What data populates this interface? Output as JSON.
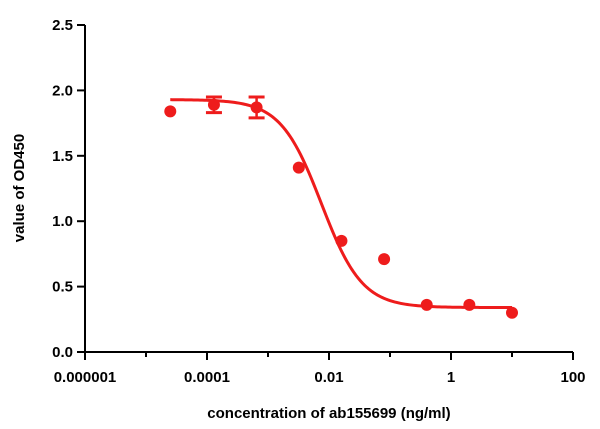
{
  "chart_data": {
    "type": "scatter",
    "xlabel": "concentration of ab155699 (ng/ml)",
    "ylabel": "value of OD450",
    "x_scale": "log",
    "xlim": [
      1e-06,
      100
    ],
    "ylim": [
      0,
      2.5
    ],
    "x_ticks": [
      {
        "value": 1e-06,
        "label": "0.000001"
      },
      {
        "value": 0.0001,
        "label": "0.0001"
      },
      {
        "value": 0.01,
        "label": "0.01"
      },
      {
        "value": 1,
        "label": "1"
      },
      {
        "value": 100,
        "label": "100"
      }
    ],
    "y_ticks": [
      {
        "value": 0,
        "label": "0.0"
      },
      {
        "value": 0.5,
        "label": "0.5"
      },
      {
        "value": 1.0,
        "label": "1.0"
      },
      {
        "value": 1.5,
        "label": "1.5"
      },
      {
        "value": 2.0,
        "label": "2.0"
      },
      {
        "value": 2.5,
        "label": "2.5"
      }
    ],
    "color": "#ee1c1c",
    "points": [
      {
        "x": 2.5e-05,
        "y": 1.84,
        "err": 0
      },
      {
        "x": 0.00013,
        "y": 1.89,
        "err": 0.06
      },
      {
        "x": 0.00065,
        "y": 1.87,
        "err": 0.08
      },
      {
        "x": 0.0032,
        "y": 1.41,
        "err": 0
      },
      {
        "x": 0.016,
        "y": 0.85,
        "err": 0
      },
      {
        "x": 0.08,
        "y": 0.71,
        "err": 0
      },
      {
        "x": 0.4,
        "y": 0.36,
        "err": 0
      },
      {
        "x": 2.0,
        "y": 0.36,
        "err": 0
      },
      {
        "x": 10.0,
        "y": 0.3,
        "err": 0
      }
    ],
    "fit_curve": {
      "model": "4PL",
      "top": 1.93,
      "bottom": 0.34,
      "ec50": 0.0075,
      "hill": 1.3,
      "x_range": [
        2.5e-05,
        10.0
      ]
    },
    "grid": false,
    "legend": "none"
  }
}
